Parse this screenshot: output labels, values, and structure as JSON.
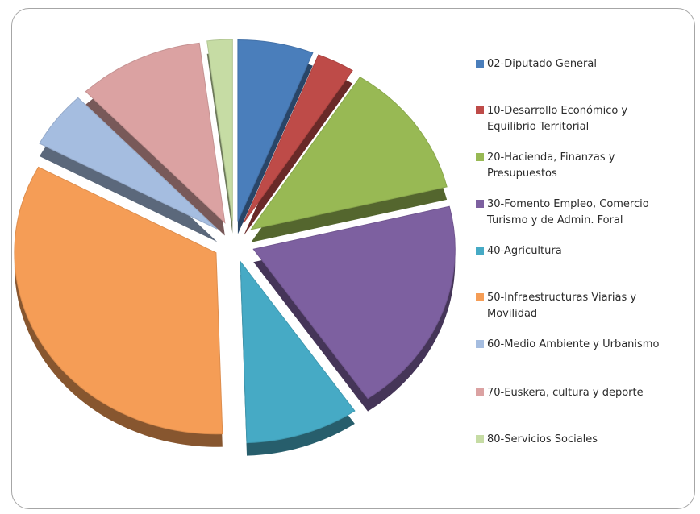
{
  "chart_data": {
    "type": "pie",
    "title": "",
    "style": "3d-exploded",
    "legend_position": "right",
    "categories": [
      "02-Diputado General",
      "10-Desarrollo Económico y\nEquilibrio Territorial",
      "20-Hacienda, Finanzas y\nPresupuestos",
      "30-Fomento Empleo, Comercio\nTurismo y de Admin. Foral",
      "40-Agricultura",
      "50-Infraestructuras Viarias y\nMovilidad",
      "60-Medio Ambiente y Urbanismo",
      "70-Euskera, cultura y deporte",
      "80-Servicios Sociales"
    ],
    "values": [
      6,
      3,
      12,
      19,
      9,
      33,
      5,
      10,
      2
    ],
    "colors": [
      "#4a7ebb",
      "#be4b48",
      "#98b954",
      "#7d60a0",
      "#46aac5",
      "#f59d56",
      "#a5bde0",
      "#dba2a2",
      "#c6dca4"
    ]
  }
}
